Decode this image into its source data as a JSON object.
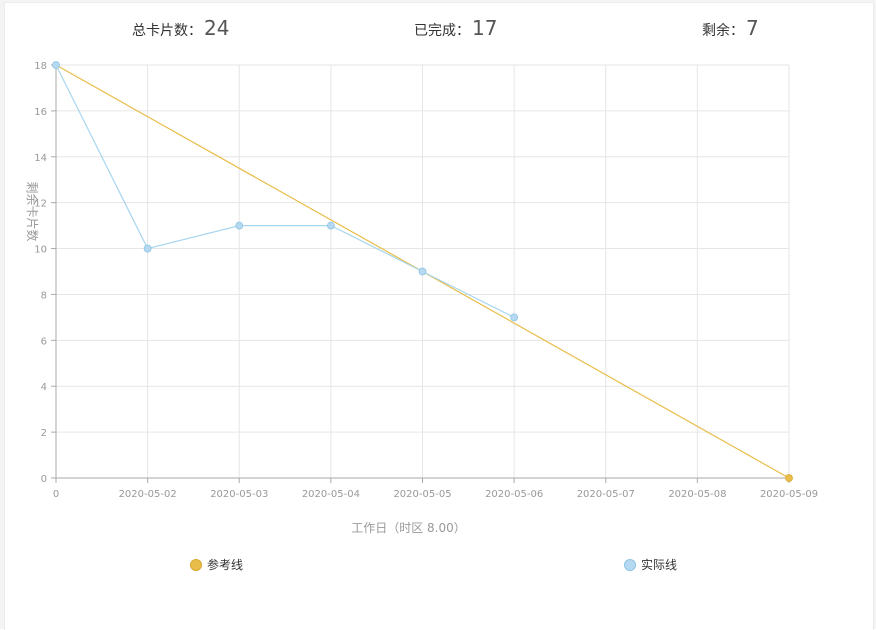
{
  "stats": {
    "total_label": "总卡片数：",
    "total_value": "24",
    "done_label": "已完成：",
    "done_value": "17",
    "remaining_label": "剩余：",
    "remaining_value": "7"
  },
  "colors": {
    "reference": "#e8bd4a",
    "actual": "#a8d6ef",
    "actual_point": "#b5d9f0",
    "grid": "#e6e6e6",
    "axis": "#aaaaaa",
    "tick_text": "#999999"
  },
  "chart_data": {
    "type": "line",
    "title": "",
    "xlabel": "工作日（时区 8.00）",
    "ylabel": "剩余卡片数",
    "categories": [
      "0",
      "2020-05-02",
      "2020-05-03",
      "2020-05-04",
      "2020-05-05",
      "2020-05-06",
      "2020-05-07",
      "2020-05-08",
      "2020-05-09"
    ],
    "ylim": [
      0,
      18
    ],
    "yticks": [
      "0",
      "2",
      "4",
      "6",
      "8",
      "10",
      "12",
      "14",
      "16",
      "18"
    ],
    "grid": true,
    "legend_position": "bottom",
    "series": [
      {
        "name": "参考线",
        "color_key": "reference",
        "points": [
          [
            0,
            18
          ],
          [
            8,
            0
          ]
        ]
      },
      {
        "name": "实际线",
        "color_key": "actual",
        "points": [
          [
            0,
            18
          ],
          [
            1,
            10
          ],
          [
            2,
            11
          ],
          [
            3,
            11
          ],
          [
            4,
            9
          ],
          [
            5,
            7
          ]
        ]
      }
    ]
  }
}
